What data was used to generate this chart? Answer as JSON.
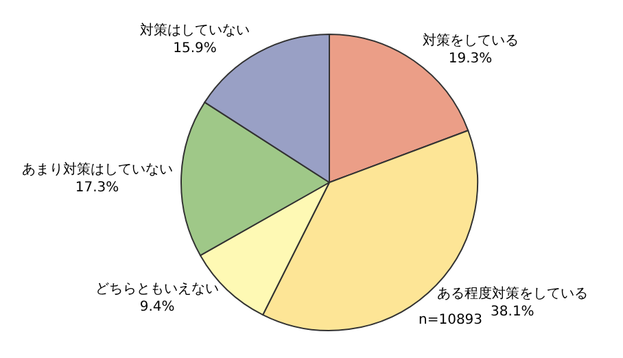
{
  "chart_data": {
    "type": "pie",
    "categories": [
      "対策をしている",
      "ある程度対策をしている",
      "どちらともいえない",
      "あまり対策はしていない",
      "対策はしていない"
    ],
    "values": [
      19.3,
      38.1,
      9.4,
      17.3,
      15.9
    ],
    "value_labels": [
      "19.3%",
      "38.1%",
      "9.4%",
      "17.3%",
      "15.9%"
    ],
    "colors": [
      "#eb9e87",
      "#fde596",
      "#fef9b4",
      "#9fc888",
      "#99a0c5"
    ],
    "annotations": [
      "n=10893"
    ],
    "legend": false
  }
}
